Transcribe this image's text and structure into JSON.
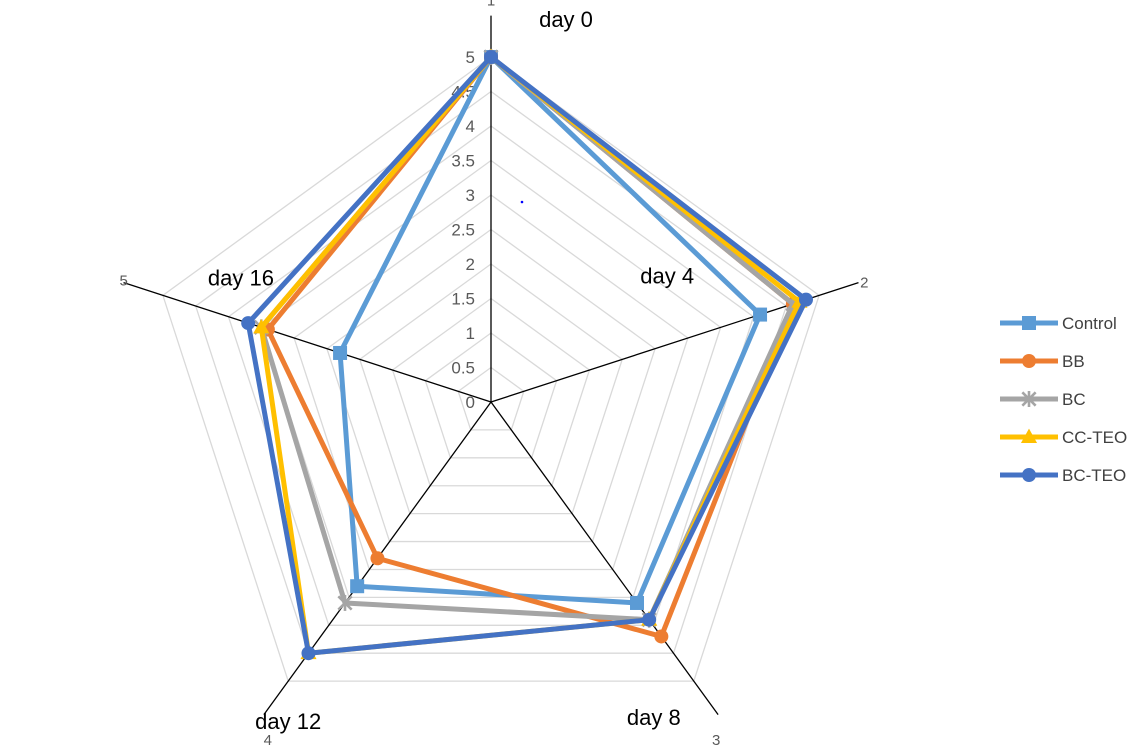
{
  "chart_data": {
    "type": "radar",
    "title": "",
    "categories": [
      "1",
      "2",
      "3",
      "4",
      "5"
    ],
    "category_labels": [
      "day 0",
      "day 4",
      "day 8",
      "day 12",
      "day 16"
    ],
    "rlim": [
      0,
      5
    ],
    "ticks": [
      "0",
      "0.5",
      "1",
      "1.5",
      "2",
      "2.5",
      "3",
      "3.5",
      "4",
      "4.5",
      "5"
    ],
    "grid": true,
    "legend": "right",
    "series": [
      {
        "name": "Control",
        "marker": "square",
        "color": "#5B9BD5",
        "values": [
          5,
          4.1,
          3.6,
          3.3,
          2.3
        ]
      },
      {
        "name": "BB",
        "marker": "circle",
        "color": "#ED7D31",
        "values": [
          5,
          4.6,
          4.2,
          2.8,
          3.4
        ]
      },
      {
        "name": "BC",
        "marker": "x",
        "color": "#A5A5A5",
        "values": [
          5,
          4.6,
          3.9,
          3.6,
          3.5
        ]
      },
      {
        "name": "CC-TEO",
        "marker": "triangle",
        "color": "#FFC000",
        "values": [
          5,
          4.7,
          3.9,
          4.5,
          3.5
        ]
      },
      {
        "name": "BC-TEO",
        "marker": "circle",
        "color": "#4472C4",
        "values": [
          5,
          4.8,
          3.9,
          4.5,
          3.7
        ]
      }
    ]
  }
}
